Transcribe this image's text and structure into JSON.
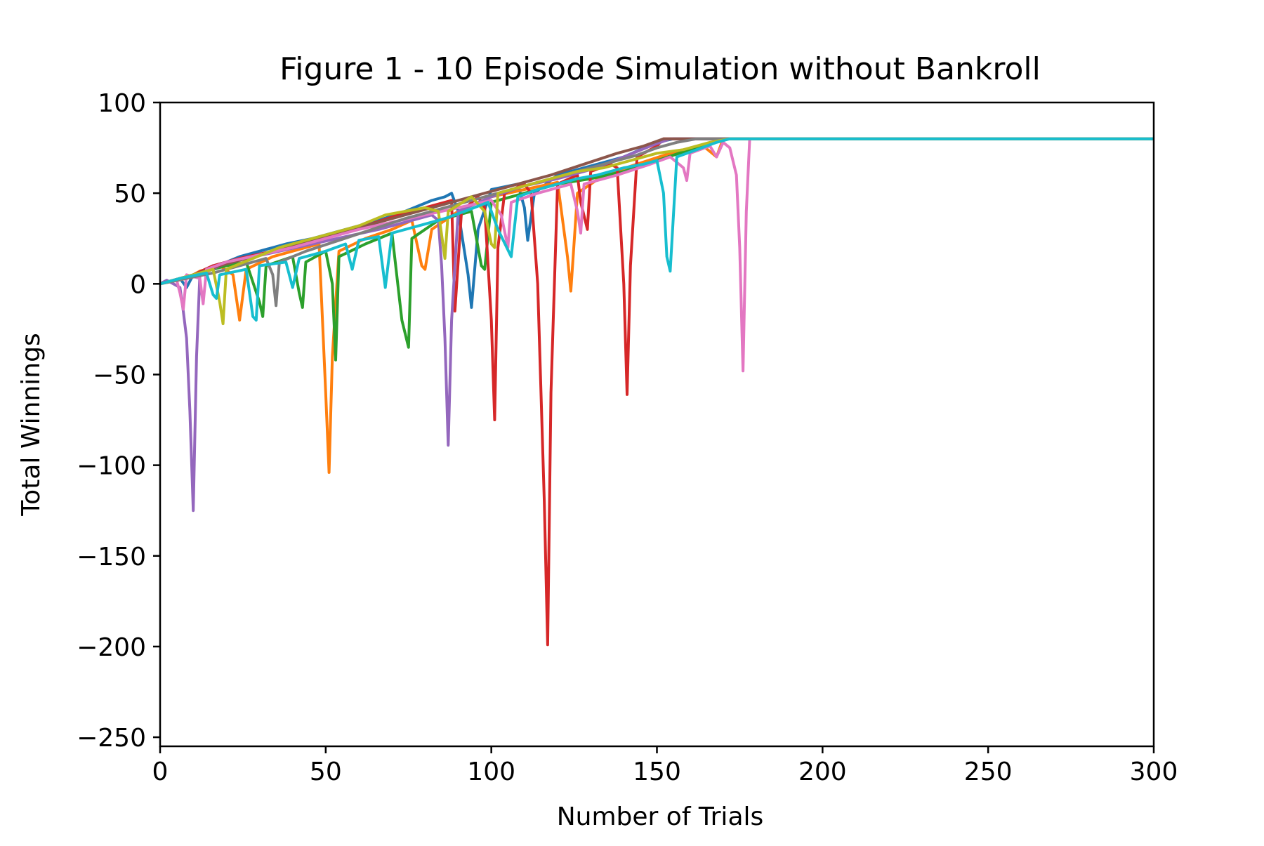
{
  "chart_data": {
    "type": "line",
    "title": "Figure 1 - 10 Episode Simulation without Bankroll",
    "xlabel": "Number of Trials",
    "ylabel": "Total Winnings",
    "xlim": [
      0,
      300
    ],
    "ylim": [
      -255,
      100
    ],
    "xticks": [
      0,
      50,
      100,
      150,
      200,
      250,
      300
    ],
    "yticks": [
      -250,
      -200,
      -150,
      -100,
      -50,
      0,
      50,
      100
    ],
    "grid": false,
    "legend": "none",
    "series": [
      {
        "color": "#1f77b4",
        "values": [
          [
            0,
            0
          ],
          [
            6,
            3
          ],
          [
            8,
            -2
          ],
          [
            10,
            5
          ],
          [
            16,
            10
          ],
          [
            20,
            12
          ],
          [
            24,
            15
          ],
          [
            30,
            18
          ],
          [
            38,
            22
          ],
          [
            46,
            25
          ],
          [
            56,
            30
          ],
          [
            66,
            35
          ],
          [
            74,
            40
          ],
          [
            82,
            46
          ],
          [
            86,
            48
          ],
          [
            88,
            50
          ],
          [
            90,
            40
          ],
          [
            93,
            5
          ],
          [
            94,
            -13
          ],
          [
            96,
            30
          ],
          [
            100,
            52
          ],
          [
            108,
            55
          ],
          [
            110,
            42
          ],
          [
            111,
            24
          ],
          [
            113,
            50
          ],
          [
            120,
            60
          ],
          [
            130,
            65
          ],
          [
            140,
            70
          ],
          [
            150,
            78
          ],
          [
            155,
            80
          ],
          [
            300,
            80
          ]
        ]
      },
      {
        "color": "#ff7f0e",
        "values": [
          [
            0,
            0
          ],
          [
            8,
            3
          ],
          [
            12,
            7
          ],
          [
            18,
            10
          ],
          [
            22,
            5
          ],
          [
            24,
            -20
          ],
          [
            26,
            8
          ],
          [
            34,
            15
          ],
          [
            44,
            20
          ],
          [
            48,
            22
          ],
          [
            50,
            -60
          ],
          [
            51,
            -104
          ],
          [
            52,
            -40
          ],
          [
            54,
            18
          ],
          [
            62,
            25
          ],
          [
            70,
            30
          ],
          [
            76,
            35
          ],
          [
            79,
            10
          ],
          [
            80,
            8
          ],
          [
            82,
            30
          ],
          [
            90,
            40
          ],
          [
            100,
            48
          ],
          [
            110,
            52
          ],
          [
            120,
            56
          ],
          [
            123,
            15
          ],
          [
            124,
            -4
          ],
          [
            126,
            50
          ],
          [
            134,
            60
          ],
          [
            144,
            66
          ],
          [
            154,
            72
          ],
          [
            164,
            76
          ],
          [
            168,
            70
          ],
          [
            170,
            80
          ],
          [
            300,
            80
          ]
        ]
      },
      {
        "color": "#2ca02c",
        "values": [
          [
            0,
            0
          ],
          [
            8,
            4
          ],
          [
            14,
            7
          ],
          [
            20,
            10
          ],
          [
            26,
            12
          ],
          [
            30,
            -10
          ],
          [
            31,
            -18
          ],
          [
            32,
            10
          ],
          [
            40,
            15
          ],
          [
            42,
            -5
          ],
          [
            43,
            -13
          ],
          [
            44,
            12
          ],
          [
            50,
            18
          ],
          [
            52,
            0
          ],
          [
            53,
            -42
          ],
          [
            54,
            15
          ],
          [
            62,
            22
          ],
          [
            70,
            28
          ],
          [
            73,
            -20
          ],
          [
            75,
            -35
          ],
          [
            76,
            25
          ],
          [
            84,
            35
          ],
          [
            94,
            40
          ],
          [
            97,
            10
          ],
          [
            98,
            8
          ],
          [
            100,
            45
          ],
          [
            110,
            50
          ],
          [
            120,
            55
          ],
          [
            130,
            58
          ],
          [
            140,
            62
          ],
          [
            150,
            68
          ],
          [
            160,
            74
          ],
          [
            170,
            80
          ],
          [
            300,
            80
          ]
        ]
      },
      {
        "color": "#d62728",
        "values": [
          [
            0,
            0
          ],
          [
            10,
            5
          ],
          [
            16,
            10
          ],
          [
            24,
            14
          ],
          [
            34,
            18
          ],
          [
            44,
            22
          ],
          [
            52,
            27
          ],
          [
            62,
            32
          ],
          [
            72,
            38
          ],
          [
            80,
            42
          ],
          [
            88,
            46
          ],
          [
            89,
            -15
          ],
          [
            91,
            40
          ],
          [
            96,
            48
          ],
          [
            98,
            42
          ],
          [
            100,
            -20
          ],
          [
            101,
            -75
          ],
          [
            102,
            20
          ],
          [
            104,
            50
          ],
          [
            110,
            55
          ],
          [
            112,
            50
          ],
          [
            114,
            0
          ],
          [
            116,
            -120
          ],
          [
            117,
            -199
          ],
          [
            118,
            -60
          ],
          [
            120,
            55
          ],
          [
            126,
            60
          ],
          [
            127,
            45
          ],
          [
            129,
            30
          ],
          [
            130,
            62
          ],
          [
            136,
            66
          ],
          [
            138,
            64
          ],
          [
            140,
            0
          ],
          [
            141,
            -61
          ],
          [
            142,
            10
          ],
          [
            144,
            70
          ],
          [
            150,
            76
          ],
          [
            152,
            80
          ],
          [
            300,
            80
          ]
        ]
      },
      {
        "color": "#9467bd",
        "values": [
          [
            0,
            0
          ],
          [
            2,
            2
          ],
          [
            4,
            0
          ],
          [
            6,
            -2
          ],
          [
            7,
            -15
          ],
          [
            8,
            -30
          ],
          [
            9,
            -70
          ],
          [
            10,
            -125
          ],
          [
            11,
            -40
          ],
          [
            12,
            5
          ],
          [
            18,
            10
          ],
          [
            26,
            14
          ],
          [
            36,
            18
          ],
          [
            46,
            22
          ],
          [
            56,
            26
          ],
          [
            66,
            30
          ],
          [
            76,
            35
          ],
          [
            82,
            38
          ],
          [
            84,
            35
          ],
          [
            85,
            10
          ],
          [
            86,
            -30
          ],
          [
            87,
            -89
          ],
          [
            88,
            -20
          ],
          [
            90,
            40
          ],
          [
            100,
            48
          ],
          [
            110,
            54
          ],
          [
            120,
            58
          ],
          [
            130,
            63
          ],
          [
            140,
            70
          ],
          [
            148,
            76
          ],
          [
            154,
            80
          ],
          [
            300,
            80
          ]
        ]
      },
      {
        "color": "#8c564b",
        "values": [
          [
            0,
            0
          ],
          [
            10,
            5
          ],
          [
            18,
            10
          ],
          [
            28,
            15
          ],
          [
            38,
            20
          ],
          [
            48,
            25
          ],
          [
            58,
            30
          ],
          [
            68,
            35
          ],
          [
            78,
            40
          ],
          [
            88,
            45
          ],
          [
            98,
            50
          ],
          [
            108,
            55
          ],
          [
            118,
            60
          ],
          [
            128,
            66
          ],
          [
            138,
            72
          ],
          [
            146,
            76
          ],
          [
            152,
            80
          ],
          [
            300,
            80
          ]
        ]
      },
      {
        "color": "#e377c2",
        "values": [
          [
            0,
            0
          ],
          [
            5,
            2
          ],
          [
            6,
            -5
          ],
          [
            7,
            -14
          ],
          [
            8,
            5
          ],
          [
            12,
            3
          ],
          [
            13,
            -11
          ],
          [
            14,
            8
          ],
          [
            20,
            12
          ],
          [
            30,
            16
          ],
          [
            40,
            20
          ],
          [
            50,
            25
          ],
          [
            60,
            30
          ],
          [
            70,
            34
          ],
          [
            80,
            38
          ],
          [
            90,
            42
          ],
          [
            100,
            46
          ],
          [
            103,
            38
          ],
          [
            105,
            20
          ],
          [
            106,
            45
          ],
          [
            114,
            50
          ],
          [
            124,
            55
          ],
          [
            126,
            40
          ],
          [
            127,
            28
          ],
          [
            128,
            55
          ],
          [
            138,
            60
          ],
          [
            148,
            66
          ],
          [
            154,
            70
          ],
          [
            158,
            64
          ],
          [
            159,
            57
          ],
          [
            160,
            72
          ],
          [
            166,
            76
          ],
          [
            168,
            70
          ],
          [
            170,
            78
          ],
          [
            172,
            75
          ],
          [
            174,
            60
          ],
          [
            175,
            20
          ],
          [
            176,
            -48
          ],
          [
            177,
            40
          ],
          [
            178,
            80
          ],
          [
            300,
            80
          ]
        ]
      },
      {
        "color": "#7f7f7f",
        "values": [
          [
            0,
            0
          ],
          [
            8,
            3
          ],
          [
            16,
            6
          ],
          [
            24,
            10
          ],
          [
            32,
            14
          ],
          [
            34,
            5
          ],
          [
            35,
            -12
          ],
          [
            36,
            12
          ],
          [
            44,
            18
          ],
          [
            54,
            24
          ],
          [
            64,
            30
          ],
          [
            74,
            36
          ],
          [
            84,
            41
          ],
          [
            94,
            46
          ],
          [
            104,
            51
          ],
          [
            114,
            56
          ],
          [
            124,
            61
          ],
          [
            134,
            66
          ],
          [
            144,
            71
          ],
          [
            150,
            75
          ],
          [
            156,
            78
          ],
          [
            162,
            80
          ],
          [
            300,
            80
          ]
        ]
      },
      {
        "color": "#bcbd22",
        "values": [
          [
            0,
            0
          ],
          [
            6,
            3
          ],
          [
            12,
            6
          ],
          [
            16,
            8
          ],
          [
            18,
            -10
          ],
          [
            19,
            -22
          ],
          [
            20,
            8
          ],
          [
            28,
            14
          ],
          [
            36,
            20
          ],
          [
            44,
            24
          ],
          [
            52,
            28
          ],
          [
            60,
            32
          ],
          [
            68,
            38
          ],
          [
            74,
            40
          ],
          [
            80,
            42
          ],
          [
            84,
            40
          ],
          [
            86,
            14
          ],
          [
            87,
            40
          ],
          [
            94,
            48
          ],
          [
            98,
            40
          ],
          [
            100,
            22
          ],
          [
            101,
            20
          ],
          [
            102,
            50
          ],
          [
            110,
            54
          ],
          [
            118,
            58
          ],
          [
            126,
            62
          ],
          [
            134,
            64
          ],
          [
            142,
            68
          ],
          [
            150,
            72
          ],
          [
            158,
            74
          ],
          [
            166,
            78
          ],
          [
            172,
            80
          ],
          [
            300,
            80
          ]
        ]
      },
      {
        "color": "#17becf",
        "values": [
          [
            0,
            0
          ],
          [
            6,
            3
          ],
          [
            14,
            6
          ],
          [
            16,
            -6
          ],
          [
            17,
            -8
          ],
          [
            18,
            5
          ],
          [
            26,
            8
          ],
          [
            28,
            -18
          ],
          [
            29,
            -20
          ],
          [
            30,
            10
          ],
          [
            38,
            12
          ],
          [
            40,
            -2
          ],
          [
            42,
            14
          ],
          [
            50,
            18
          ],
          [
            56,
            22
          ],
          [
            58,
            8
          ],
          [
            60,
            24
          ],
          [
            66,
            26
          ],
          [
            68,
            -2
          ],
          [
            70,
            28
          ],
          [
            78,
            32
          ],
          [
            86,
            36
          ],
          [
            92,
            40
          ],
          [
            99,
            45
          ],
          [
            102,
            30
          ],
          [
            106,
            15
          ],
          [
            108,
            48
          ],
          [
            114,
            52
          ],
          [
            120,
            55
          ],
          [
            126,
            58
          ],
          [
            132,
            60
          ],
          [
            140,
            64
          ],
          [
            146,
            66
          ],
          [
            150,
            68
          ],
          [
            152,
            50
          ],
          [
            153,
            15
          ],
          [
            154,
            7
          ],
          [
            156,
            70
          ],
          [
            162,
            74
          ],
          [
            168,
            78
          ],
          [
            172,
            80
          ],
          [
            300,
            80
          ]
        ]
      }
    ]
  }
}
